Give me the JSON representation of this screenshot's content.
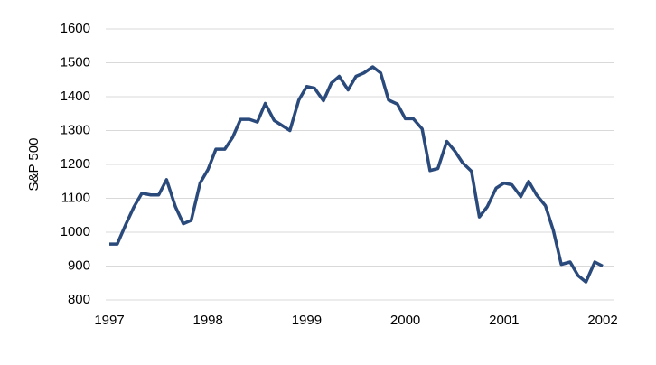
{
  "chart_data": {
    "type": "line",
    "y_label": "S&P 500",
    "x": [
      1997.0,
      1997.08,
      1997.17,
      1997.25,
      1997.33,
      1997.42,
      1997.5,
      1997.58,
      1997.67,
      1997.75,
      1997.83,
      1997.92,
      1998.0,
      1998.08,
      1998.17,
      1998.25,
      1998.33,
      1998.42,
      1998.5,
      1998.58,
      1998.67,
      1998.75,
      1998.83,
      1998.92,
      1999.0,
      1999.08,
      1999.17,
      1999.25,
      1999.33,
      1999.42,
      1999.5,
      1999.58,
      1999.67,
      1999.75,
      1999.83,
      1999.92,
      2000.0,
      2000.08,
      2000.17,
      2000.25,
      2000.33,
      2000.42,
      2000.5,
      2000.58,
      2000.67,
      2000.75,
      2000.83,
      2000.92,
      2001.0,
      2001.08,
      2001.17,
      2001.25,
      2001.33,
      2001.42,
      2001.5,
      2001.58,
      2001.67,
      2001.75,
      2001.83,
      2001.92,
      2002.0
    ],
    "series": [
      {
        "name": "S&P 500",
        "color": "#2b4a7c",
        "values": [
          965,
          965,
          1025,
          1075,
          1115,
          1110,
          1110,
          1155,
          1075,
          1025,
          1035,
          1145,
          1185,
          1245,
          1245,
          1280,
          1333,
          1333,
          1325,
          1380,
          1330,
          1315,
          1300,
          1390,
          1430,
          1425,
          1388,
          1440,
          1460,
          1420,
          1460,
          1470,
          1488,
          1470,
          1390,
          1378,
          1335,
          1335,
          1305,
          1182,
          1188,
          1268,
          1240,
          1205,
          1180,
          1045,
          1075,
          1130,
          1145,
          1140,
          1105,
          1150,
          1110,
          1078,
          1005,
          905,
          912,
          872,
          853,
          912,
          900
        ]
      }
    ],
    "xlim": [
      1997,
      2002
    ],
    "xticks": [
      1997,
      1998,
      1999,
      2000,
      2001,
      2002
    ],
    "ylim": [
      800,
      1600
    ],
    "yticks": [
      800,
      900,
      1000,
      1100,
      1200,
      1300,
      1400,
      1500,
      1600
    ],
    "grid": true
  }
}
